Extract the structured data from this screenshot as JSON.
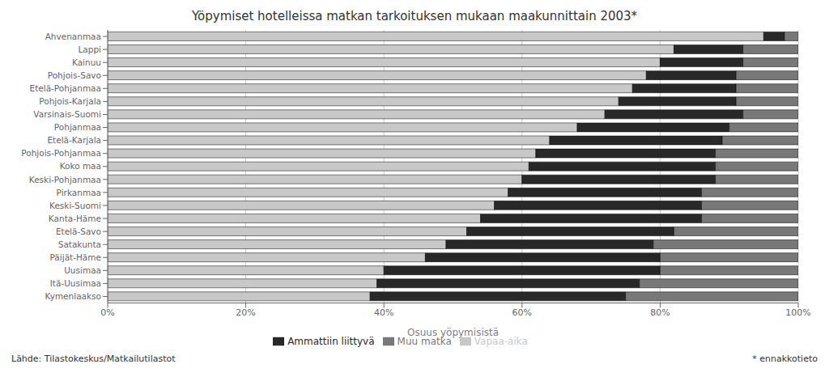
{
  "chart_data": {
    "type": "bar",
    "orientation": "horizontal",
    "stacked": true,
    "title": "Yöpymiset hotelleissa matkan tarkoituksen mukaan maakunnittain 2003*",
    "x_label": "Osuus yöpymisistä",
    "categories": [
      "Ahvenanmaa",
      "Lappi",
      "Kainuu",
      "Pohjois-Savo",
      "Etelä-Pohjanmaa",
      "Pohjois-Karjala",
      "Varsinais-Suomi",
      "Pohjanmaa",
      "Etelä-Karjala",
      "Pohjois-Pohjanmaa",
      "Koko maa",
      "Keski-Pohjanmaa",
      "Pirkanmaa",
      "Keski-Suomi",
      "Kanta-Häme",
      "Etelä-Savo",
      "Satakunta",
      "Päijät-Häme",
      "Uusimaa",
      "Itä-Uusimaa",
      "Kymenlaakso"
    ],
    "series": [
      {
        "name": "Vapaa-aika",
        "color": "#c8c8c8",
        "values": [
          95,
          82,
          80,
          78,
          76,
          74,
          72,
          68,
          64,
          62,
          61,
          60,
          58,
          56,
          54,
          52,
          49,
          46,
          40,
          39,
          38
        ]
      },
      {
        "name": "Ammattiin liittyvä",
        "color": "#282828",
        "values": [
          3,
          10,
          12,
          13,
          15,
          17,
          20,
          22,
          25,
          26,
          27,
          28,
          28,
          30,
          32,
          30,
          30,
          34,
          40,
          38,
          37
        ]
      },
      {
        "name": "Muu matka",
        "color": "#787878",
        "values": [
          2,
          8,
          8,
          9,
          9,
          9,
          8,
          10,
          11,
          12,
          12,
          12,
          14,
          14,
          14,
          18,
          21,
          20,
          20,
          23,
          25
        ]
      }
    ],
    "xlim": [
      0,
      100
    ],
    "xticks": [
      {
        "value": 0,
        "label": "0%"
      },
      {
        "value": 20,
        "label": "20%"
      },
      {
        "value": 40,
        "label": "40%"
      },
      {
        "value": 60,
        "label": "60%"
      },
      {
        "value": 80,
        "label": "80%"
      },
      {
        "value": 100,
        "label": "100%"
      }
    ],
    "grid": true,
    "legend": "bottom",
    "annotations": [
      "Lähde: Tilastokeskus/Matkailutilastot",
      "* ennakkotieto"
    ]
  }
}
